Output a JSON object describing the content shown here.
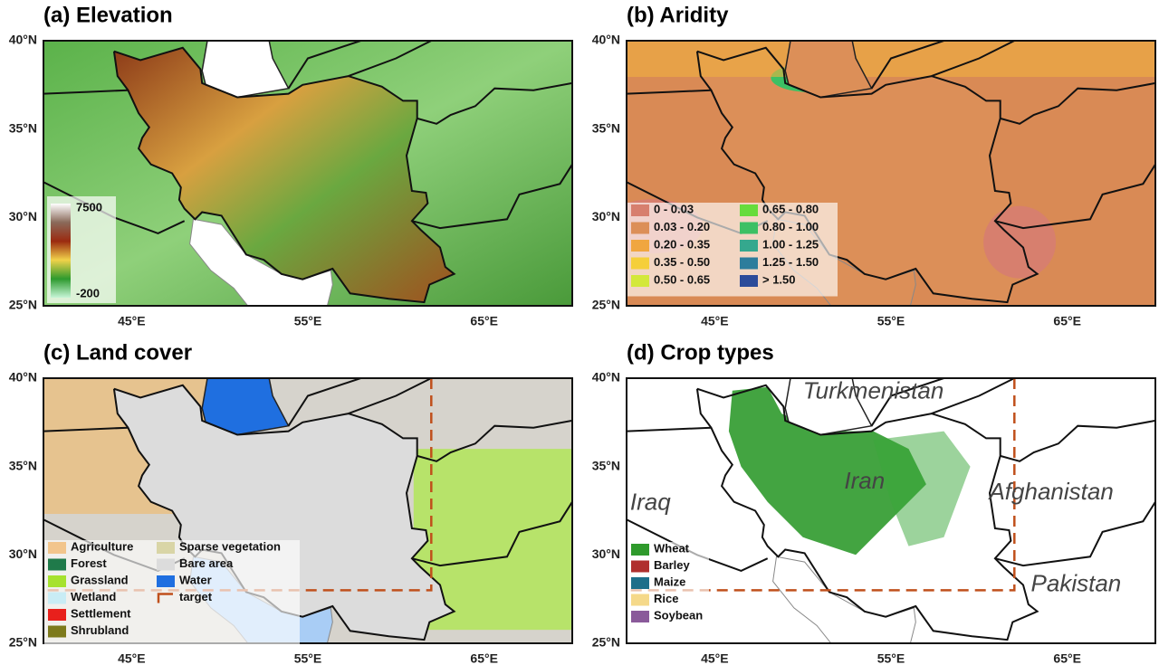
{
  "axes": {
    "lat_ticks": [
      "40°N",
      "35°N",
      "30°N",
      "25°N"
    ],
    "lon_ticks": [
      "45°E",
      "55°E",
      "65°E"
    ]
  },
  "panels": [
    {
      "title": "(a) Elevation",
      "colorbar": {
        "max": 7500,
        "min": -200
      }
    },
    {
      "title": "(b) Aridity",
      "legend": [
        {
          "label": "0 - 0.03",
          "color": "#d77f6e"
        },
        {
          "label": "0.03 - 0.20",
          "color": "#dc8f58"
        },
        {
          "label": "0.20 - 0.35",
          "color": "#f0a640"
        },
        {
          "label": "0.35 - 0.50",
          "color": "#f5cf3a"
        },
        {
          "label": "0.50 - 0.65",
          "color": "#d3e83a"
        },
        {
          "label": "0.65 - 0.80",
          "color": "#66dc3c"
        },
        {
          "label": "0.80 - 1.00",
          "color": "#3cc064"
        },
        {
          "label": "1.00 - 1.25",
          "color": "#35a88e"
        },
        {
          "label": "1.25 - 1.50",
          "color": "#2d7d9c"
        },
        {
          "label": "> 1.50",
          "color": "#2c4b9a"
        }
      ]
    },
    {
      "title": "(c) Land cover",
      "legend": [
        {
          "label": "Agriculture",
          "color": "#f2c58c"
        },
        {
          "label": "Forest",
          "color": "#1f7a4a"
        },
        {
          "label": "Grassland",
          "color": "#a6e22e"
        },
        {
          "label": "Wetland",
          "color": "#c9ecf5"
        },
        {
          "label": "Settlement",
          "color": "#e8201c"
        },
        {
          "label": "Shrubland",
          "color": "#7d7a1c"
        },
        {
          "label": "Sparse vegetation",
          "color": "#d9d5a6"
        },
        {
          "label": "Bare area",
          "color": "#dcdcdc"
        },
        {
          "label": "Water",
          "color": "#1f6fe0"
        },
        {
          "label": "target",
          "color": "#c0501c"
        }
      ]
    },
    {
      "title": "(d) Crop types",
      "legend": [
        {
          "label": "Wheat",
          "color": "#2f9a2c"
        },
        {
          "label": "Barley",
          "color": "#b0302e"
        },
        {
          "label": "Maize",
          "color": "#1f6f8a"
        },
        {
          "label": "Rice",
          "color": "#f5d98a"
        },
        {
          "label": "Soybean",
          "color": "#8a5a9a"
        }
      ],
      "labels": [
        "Turkmenistan",
        "Iran",
        "Iraq",
        "Afghanistan",
        "Pakistan"
      ]
    }
  ]
}
